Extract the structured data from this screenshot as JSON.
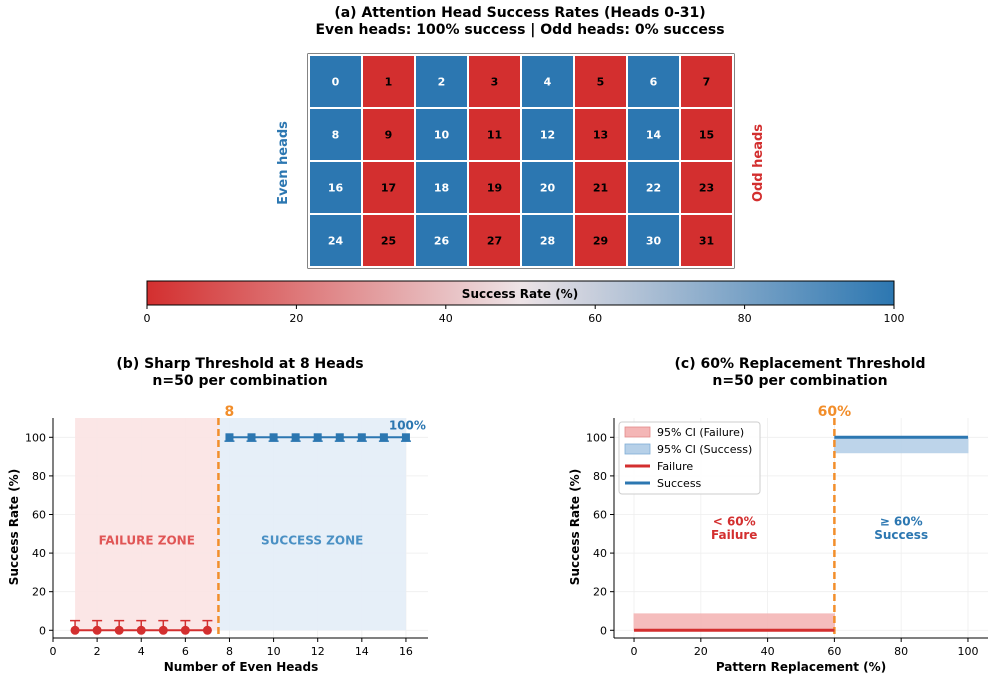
{
  "panel_a": {
    "title_line1": "(a) Attention Head Success Rates (Heads 0-31)",
    "title_line2": "Even heads: 100% success | Odd heads: 0% success",
    "left_label": "Even heads",
    "right_label": "Odd heads",
    "colorbar_label": "Success Rate (%)",
    "colorbar_ticks": [
      "0",
      "20",
      "40",
      "60",
      "80",
      "100"
    ]
  },
  "panel_b": {
    "title_line1": "(b) Sharp Threshold at 8 Heads",
    "title_line2": "n=50 per combination",
    "threshold_label": "8",
    "top_label": "100%",
    "failure_zone": "FAILURE ZONE",
    "success_zone": "SUCCESS ZONE"
  },
  "panel_c": {
    "title_line1": "(c) 60% Replacement Threshold",
    "title_line2": "n=50 per combination",
    "threshold_label": "60%",
    "left_note_1": "< 60%",
    "left_note_2": "Failure",
    "right_note_1": "≥ 60%",
    "right_note_2": "Success"
  },
  "colors": {
    "blue": "#2c77b1",
    "red": "#d32f2f",
    "orange": "#f28e2b",
    "failure_fill": "#fbe3e3",
    "success_fill": "#e3edf7"
  },
  "chart_data": [
    {
      "type": "heatmap",
      "rows": [
        {
          "heads": [
            0,
            1,
            2,
            3,
            4,
            5,
            6,
            7
          ],
          "values": [
            100,
            0,
            100,
            0,
            100,
            0,
            100,
            0
          ]
        },
        {
          "heads": [
            8,
            9,
            10,
            11,
            12,
            13,
            14,
            15
          ],
          "values": [
            100,
            0,
            100,
            0,
            100,
            0,
            100,
            0
          ]
        },
        {
          "heads": [
            16,
            17,
            18,
            19,
            20,
            21,
            22,
            23
          ],
          "values": [
            100,
            0,
            100,
            0,
            100,
            0,
            100,
            0
          ]
        },
        {
          "heads": [
            24,
            25,
            26,
            27,
            28,
            29,
            30,
            31
          ],
          "values": [
            100,
            0,
            100,
            0,
            100,
            0,
            100,
            0
          ]
        }
      ],
      "colorbar_range": [
        0,
        100
      ]
    },
    {
      "type": "line",
      "xlabel": "Number of Even Heads",
      "ylabel": "Success Rate (%)",
      "xlim": [
        0,
        17
      ],
      "ylim": [
        -4,
        110
      ],
      "xticks": [
        0,
        2,
        4,
        6,
        8,
        10,
        12,
        14,
        16
      ],
      "yticks": [
        0,
        20,
        40,
        60,
        80,
        100
      ],
      "threshold_x": 7.5,
      "failure_zone_x": [
        1,
        7.5
      ],
      "success_zone_x": [
        7.5,
        16
      ],
      "series": [
        {
          "x": [
            1,
            2,
            3,
            4,
            5,
            6,
            7
          ],
          "y": [
            0,
            0,
            0,
            0,
            0,
            0,
            0
          ],
          "err_low": [
            0,
            0,
            0,
            0,
            0,
            0,
            0
          ],
          "err_high": [
            5,
            5,
            5,
            5,
            5,
            5,
            5
          ],
          "color": "#d32f2f",
          "marker": "circle"
        },
        {
          "x": [
            8,
            9,
            10,
            11,
            12,
            13,
            14,
            15,
            16
          ],
          "y": [
            100,
            100,
            100,
            100,
            100,
            100,
            100,
            100,
            100
          ],
          "err_low": [
            2,
            2,
            2,
            2,
            2,
            2,
            2,
            2,
            2
          ],
          "err_high": [
            0,
            0,
            0,
            0,
            0,
            0,
            0,
            0,
            0
          ],
          "color": "#2c77b1",
          "marker": "square"
        }
      ]
    },
    {
      "type": "line",
      "xlabel": "Pattern Replacement (%)",
      "ylabel": "Success Rate (%)",
      "xlim": [
        -6,
        106
      ],
      "ylim": [
        -4,
        110
      ],
      "xticks": [
        0,
        20,
        40,
        60,
        80,
        100
      ],
      "yticks": [
        0,
        20,
        40,
        60,
        80,
        100
      ],
      "threshold_x": 60,
      "legend": [
        "95% CI (Failure)",
        "95% CI (Success)",
        "Failure",
        "Success"
      ],
      "legend_position": "top-left",
      "series": [
        {
          "name": "Failure",
          "x": [
            0,
            60
          ],
          "y": [
            0,
            0
          ],
          "color": "#d32f2f"
        },
        {
          "name": "Success",
          "x": [
            60,
            100
          ],
          "y": [
            100,
            100
          ],
          "color": "#2c77b1"
        }
      ],
      "bands": [
        {
          "name": "95% CI (Failure)",
          "x": [
            0,
            60
          ],
          "low": 0,
          "high": 8.5,
          "color": "#f4b6b6"
        },
        {
          "name": "95% CI (Success)",
          "x": [
            60,
            100
          ],
          "low": 92,
          "high": 100,
          "color": "#b6d0e8"
        }
      ]
    }
  ]
}
